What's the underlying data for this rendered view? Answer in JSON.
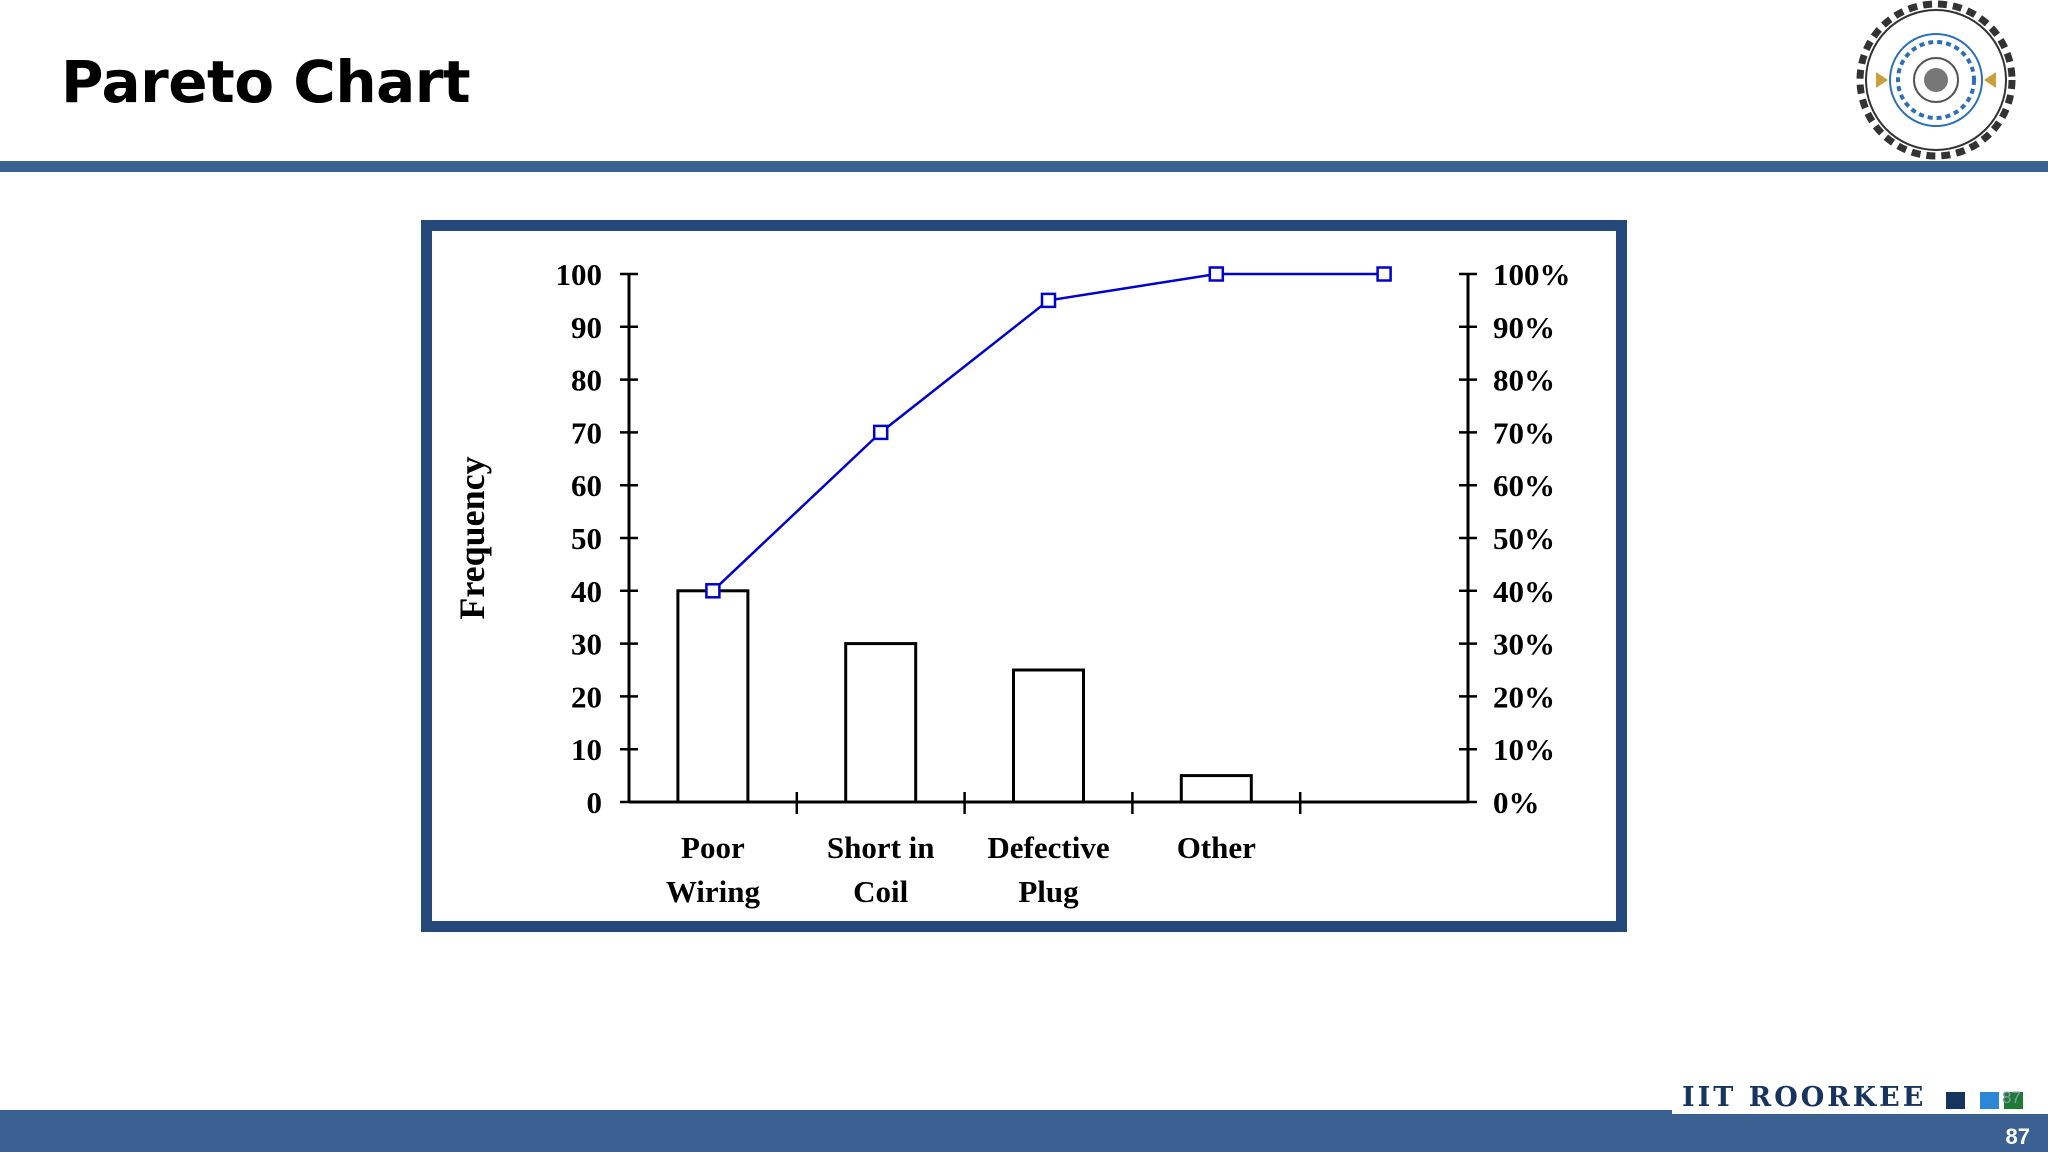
{
  "slide": {
    "title": "Pareto Chart",
    "page_number": "87",
    "footer_brand": "IIT ROORKEE",
    "footer_small_number": "87"
  },
  "logo": {
    "name": "iit-roorkee-seal",
    "text": "भारतीय प्रौद्योगिकी संस्थान रुड़की · INDIAN INSTITUTE OF TECHNOLOGY ROORKEE"
  },
  "colors": {
    "accent_bar": "#3b6192",
    "frame_border": "#26497c",
    "cumulative_line": "#0000cc",
    "bar_fill": "#ffffff",
    "bar_stroke": "#000000"
  },
  "chart_data": {
    "type": "bar",
    "title": "",
    "xlabel": "",
    "ylabel": "Frequency",
    "categories": [
      [
        "Poor",
        "Wiring"
      ],
      [
        "Short in",
        "Coil"
      ],
      [
        "Defective",
        "Plug"
      ],
      [
        "Other"
      ]
    ],
    "values": [
      40,
      30,
      25,
      5
    ],
    "ylim": [
      0,
      100
    ],
    "y_ticks": [
      0,
      10,
      20,
      30,
      40,
      50,
      60,
      70,
      80,
      90,
      100
    ],
    "y_tick_labels": [
      "0",
      "10",
      "20",
      "30",
      "40",
      "50",
      "60",
      "70",
      "80",
      "90",
      "100"
    ],
    "y2_ticks": [
      0,
      10,
      20,
      30,
      40,
      50,
      60,
      70,
      80,
      90,
      100
    ],
    "y2_tick_labels": [
      "0%",
      "10%",
      "20%",
      "30%",
      "40%",
      "50%",
      "60%",
      "70%",
      "80%",
      "90%",
      "100%"
    ],
    "cumulative_line": {
      "type": "line",
      "x_slots": [
        0,
        1,
        2,
        3,
        4
      ],
      "values": [
        40,
        70,
        95,
        100,
        100
      ],
      "marker": "hollow-square"
    },
    "x_slot_count": 5,
    "grid": false,
    "legend": "none"
  }
}
